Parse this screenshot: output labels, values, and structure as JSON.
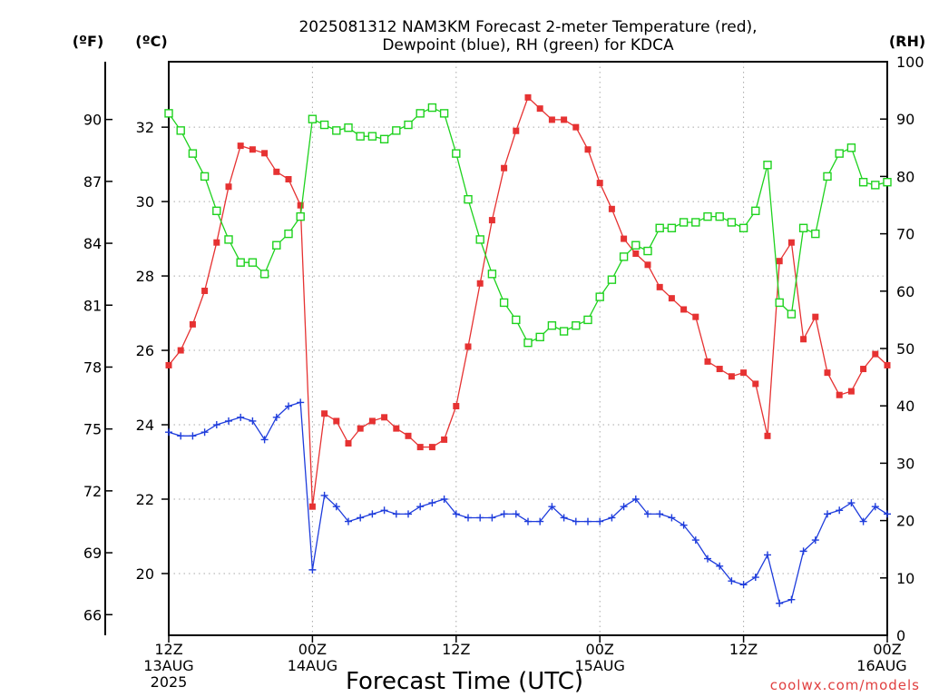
{
  "chart_data": {
    "type": "line",
    "title_line1": "2025081312 NAM3KM Forecast 2-meter Temperature (red),",
    "title_line2": "Dewpoint (blue), RH (green) for KDCA",
    "xlabel": "Forecast Time (UTC)",
    "credit": "coolwx.com/models",
    "units": {
      "left_f": "(ºF)",
      "left_c": "(ºC)",
      "right": "(RH)"
    },
    "x_range_hours": [
      0,
      60
    ],
    "x_ticks": [
      {
        "hour": 0,
        "lines": [
          "12Z",
          "13AUG",
          "2025"
        ]
      },
      {
        "hour": 12,
        "lines": [
          "00Z",
          "14AUG"
        ]
      },
      {
        "hour": 24,
        "lines": [
          "12Z"
        ]
      },
      {
        "hour": 36,
        "lines": [
          "00Z",
          "15AUG"
        ]
      },
      {
        "hour": 48,
        "lines": [
          "12Z"
        ]
      },
      {
        "hour": 60,
        "lines": [
          "00Z",
          "16AUG"
        ]
      }
    ],
    "axis_c": {
      "range": [
        18.34,
        33.76
      ],
      "ticks": [
        20,
        22,
        24,
        26,
        28,
        30,
        32
      ]
    },
    "axis_f": {
      "range": [
        65.0,
        92.8
      ],
      "ticks": [
        66,
        69,
        72,
        75,
        78,
        81,
        84,
        87,
        90
      ]
    },
    "axis_rh": {
      "range": [
        0,
        100
      ],
      "ticks": [
        0,
        10,
        20,
        30,
        40,
        50,
        60,
        70,
        80,
        90,
        100
      ]
    },
    "grid": true,
    "colors": {
      "temperature": "#e63232",
      "dewpoint": "#1e3cdc",
      "rh": "#1ed21e"
    },
    "series": [
      {
        "name": "Temperature",
        "unit": "°C",
        "marker": "filled-square",
        "x": [
          0,
          1,
          2,
          3,
          4,
          5,
          6,
          7,
          8,
          9,
          10,
          11,
          12,
          13,
          14,
          15,
          16,
          17,
          18,
          19,
          20,
          21,
          22,
          23,
          24,
          25,
          26,
          27,
          28,
          29,
          30,
          31,
          32,
          33,
          34,
          35,
          36,
          37,
          38,
          39,
          40,
          41,
          42,
          43,
          44,
          45,
          46,
          47,
          48,
          49,
          50,
          51,
          52,
          53,
          54,
          55,
          56,
          57,
          58,
          59,
          60
        ],
        "values": [
          25.6,
          26.0,
          26.7,
          27.6,
          28.9,
          30.4,
          31.5,
          31.4,
          31.3,
          30.8,
          30.6,
          29.9,
          21.8,
          24.3,
          24.1,
          23.5,
          23.9,
          24.1,
          24.2,
          23.9,
          23.7,
          23.4,
          23.4,
          23.6,
          24.5,
          26.1,
          27.8,
          29.5,
          30.9,
          31.9,
          32.8,
          32.5,
          32.2,
          32.2,
          32.0,
          31.4,
          30.5,
          29.8,
          29.0,
          28.6,
          28.3,
          27.7,
          27.4,
          27.1,
          26.9,
          25.7,
          25.5,
          25.3,
          25.4,
          25.1,
          23.7,
          28.4,
          28.9,
          26.3,
          26.9,
          25.4,
          24.8,
          24.9,
          25.5,
          25.9,
          25.6
        ]
      },
      {
        "name": "Dewpoint",
        "unit": "°C",
        "marker": "plus",
        "x": [
          0,
          1,
          2,
          3,
          4,
          5,
          6,
          7,
          8,
          9,
          10,
          11,
          12,
          13,
          14,
          15,
          16,
          17,
          18,
          19,
          20,
          21,
          22,
          23,
          24,
          25,
          26,
          27,
          28,
          29,
          30,
          31,
          32,
          33,
          34,
          35,
          36,
          37,
          38,
          39,
          40,
          41,
          42,
          43,
          44,
          45,
          46,
          47,
          48,
          49,
          50,
          51,
          52,
          53,
          54,
          55,
          56,
          57,
          58,
          59,
          60
        ],
        "values": [
          23.8,
          23.7,
          23.7,
          23.8,
          24.0,
          24.1,
          24.2,
          24.1,
          23.6,
          24.2,
          24.5,
          24.6,
          20.1,
          22.1,
          21.8,
          21.4,
          21.5,
          21.6,
          21.7,
          21.6,
          21.6,
          21.8,
          21.9,
          22.0,
          21.6,
          21.5,
          21.5,
          21.5,
          21.6,
          21.6,
          21.4,
          21.4,
          21.8,
          21.5,
          21.4,
          21.4,
          21.4,
          21.5,
          21.8,
          22.0,
          21.6,
          21.6,
          21.5,
          21.3,
          20.9,
          20.4,
          20.2,
          19.8,
          19.7,
          19.9,
          20.5,
          19.2,
          19.3,
          20.6,
          20.9,
          21.6,
          21.7,
          21.9,
          21.4,
          21.8,
          21.6
        ]
      },
      {
        "name": "RH",
        "unit": "%",
        "marker": "open-square",
        "x": [
          0,
          1,
          2,
          3,
          4,
          5,
          6,
          7,
          8,
          9,
          10,
          11,
          12,
          13,
          14,
          15,
          16,
          17,
          18,
          19,
          20,
          21,
          22,
          23,
          24,
          25,
          26,
          27,
          28,
          29,
          30,
          31,
          32,
          33,
          34,
          35,
          36,
          37,
          38,
          39,
          40,
          41,
          42,
          43,
          44,
          45,
          46,
          47,
          48,
          49,
          50,
          51,
          52,
          53,
          54,
          55,
          56,
          57,
          58,
          59,
          60
        ],
        "values": [
          91,
          88,
          84,
          80,
          74,
          69,
          65,
          65,
          63,
          68,
          70,
          73,
          90,
          89,
          88,
          88.5,
          87,
          87,
          86.5,
          88,
          89,
          91,
          92,
          91,
          84,
          76,
          69,
          63,
          58,
          55,
          51,
          52,
          54,
          53,
          54,
          55,
          59,
          62,
          66,
          68,
          67,
          71,
          71,
          72,
          72,
          73,
          73,
          72,
          71,
          74,
          82,
          58,
          56,
          71,
          70,
          80,
          84,
          85,
          79,
          78.5,
          79
        ]
      }
    ]
  }
}
